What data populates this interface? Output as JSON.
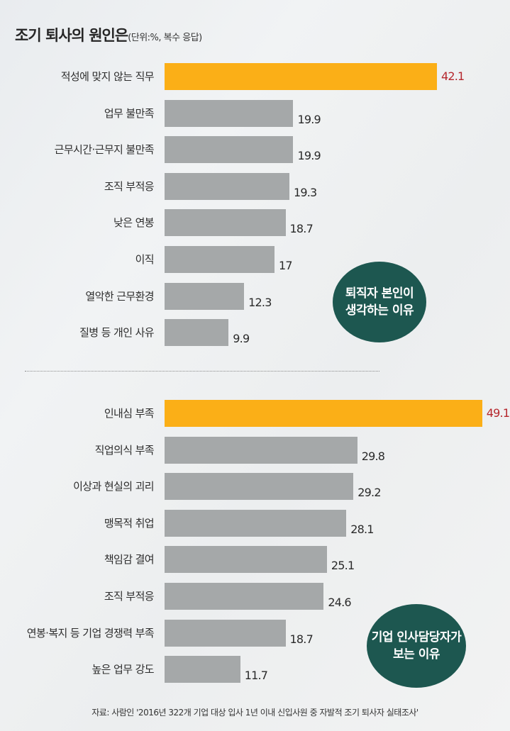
{
  "title": {
    "main": "조기 퇴사의 원인은",
    "unit": "(단위:%, 복수 응답)"
  },
  "colors": {
    "highlight_bar": "#fbaf17",
    "normal_bar": "#a5a8a9",
    "highlight_value": "#b5272d",
    "bubble": "#1d5750"
  },
  "sections": [
    {
      "bubble_line1": "퇴직자 본인이",
      "bubble_line2": "생각하는 이유",
      "rows": [
        {
          "label": "적성에 맞지 않는 직무",
          "value": "42.1",
          "highlight": true
        },
        {
          "label": "업무 불만족",
          "value": "19.9",
          "highlight": false
        },
        {
          "label": "근무시간·근무지 불만족",
          "value": "19.9",
          "highlight": false
        },
        {
          "label": "조직 부적응",
          "value": "19.3",
          "highlight": false
        },
        {
          "label": "낮은 연봉",
          "value": "18.7",
          "highlight": false
        },
        {
          "label": "이직",
          "value": "17",
          "highlight": false
        },
        {
          "label": "열악한 근무환경",
          "value": "12.3",
          "highlight": false
        },
        {
          "label": "질병 등 개인 사유",
          "value": "9.9",
          "highlight": false
        }
      ]
    },
    {
      "bubble_line1": "기업 인사담당자가",
      "bubble_line2": "보는 이유",
      "rows": [
        {
          "label": "인내심 부족",
          "value": "49.1",
          "highlight": true
        },
        {
          "label": "직업의식 부족",
          "value": "29.8",
          "highlight": false
        },
        {
          "label": "이상과 현실의 괴리",
          "value": "29.2",
          "highlight": false
        },
        {
          "label": "맹목적 취업",
          "value": "28.1",
          "highlight": false
        },
        {
          "label": "책임감 결여",
          "value": "25.1",
          "highlight": false
        },
        {
          "label": "조직 부적응",
          "value": "24.6",
          "highlight": false
        },
        {
          "label": "연봉·복지 등 기업 경쟁력 부족",
          "value": "18.7",
          "highlight": false
        },
        {
          "label": "높은 업무 강도",
          "value": "11.7",
          "highlight": false
        }
      ]
    }
  ],
  "source": "자료: 사람인 '2016년 322개 기업 대상 입사 1년 이내 신입사원 중 자발적 조기 퇴사자 실태조사'",
  "chart_data": [
    {
      "type": "bar",
      "orientation": "horizontal",
      "title": "조기 퇴사의 원인은 (단위:%, 복수 응답) — 퇴직자 본인이 생각하는 이유",
      "categories": [
        "적성에 맞지 않는 직무",
        "업무 불만족",
        "근무시간·근무지 불만족",
        "조직 부적응",
        "낮은 연봉",
        "이직",
        "열악한 근무환경",
        "질병 등 개인 사유"
      ],
      "values": [
        42.1,
        19.9,
        19.9,
        19.3,
        18.7,
        17,
        12.3,
        9.9
      ],
      "xlabel": "",
      "ylabel": "",
      "unit": "%",
      "grid": false,
      "legend": false,
      "annotation": "퇴직자 본인이 생각하는 이유"
    },
    {
      "type": "bar",
      "orientation": "horizontal",
      "title": "조기 퇴사의 원인은 (단위:%, 복수 응답) — 기업 인사담당자가 보는 이유",
      "categories": [
        "인내심 부족",
        "직업의식 부족",
        "이상과 현실의 괴리",
        "맹목적 취업",
        "책임감 결여",
        "조직 부적응",
        "연봉·복지 등 기업 경쟁력 부족",
        "높은 업무 강도"
      ],
      "values": [
        49.1,
        29.8,
        29.2,
        28.1,
        25.1,
        24.6,
        18.7,
        11.7
      ],
      "xlabel": "",
      "ylabel": "",
      "unit": "%",
      "grid": false,
      "legend": false,
      "annotation": "기업 인사담당자가 보는 이유"
    }
  ]
}
